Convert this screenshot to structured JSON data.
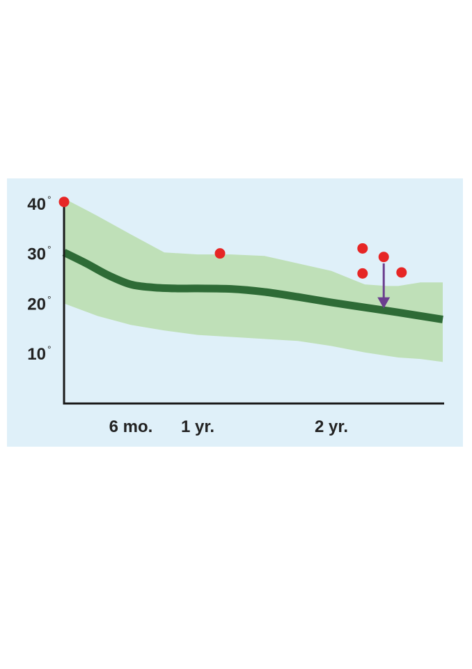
{
  "chart_data": {
    "type": "line",
    "title": "",
    "xlabel": "",
    "ylabel": "",
    "ylim": [
      0,
      45
    ],
    "xlim": [
      0,
      34
    ],
    "x_ticks": [
      {
        "value": 6,
        "label": "6 mo."
      },
      {
        "value": 12,
        "label": "1 yr."
      },
      {
        "value": 24,
        "label": "2 yr."
      }
    ],
    "y_ticks": [
      {
        "value": 10,
        "label": "10",
        "unit": "°"
      },
      {
        "value": 20,
        "label": "20",
        "unit": "°"
      },
      {
        "value": 30,
        "label": "30",
        "unit": "°"
      },
      {
        "value": 40,
        "label": "40",
        "unit": "°"
      }
    ],
    "series": [
      {
        "role": "mean",
        "points": [
          [
            0,
            30.2
          ],
          [
            2,
            28.0
          ],
          [
            4,
            25.6
          ],
          [
            6,
            23.8
          ],
          [
            8,
            23.2
          ],
          [
            10,
            23.0
          ],
          [
            12,
            23.0
          ],
          [
            15,
            22.9
          ],
          [
            18,
            22.3
          ],
          [
            21,
            21.3
          ],
          [
            24,
            20.2
          ],
          [
            27,
            19.2
          ],
          [
            30,
            18.2
          ],
          [
            34,
            16.8
          ]
        ]
      }
    ],
    "band": {
      "role": "range",
      "upper": [
        [
          0,
          41.0
        ],
        [
          3,
          37.5
        ],
        [
          6,
          33.8
        ],
        [
          9,
          30.2
        ],
        [
          12,
          29.8
        ],
        [
          15,
          29.8
        ],
        [
          18,
          29.5
        ],
        [
          21,
          28.0
        ],
        [
          24,
          26.5
        ],
        [
          27,
          23.8
        ],
        [
          29,
          23.5
        ],
        [
          30,
          23.5
        ],
        [
          32,
          24.2
        ],
        [
          34,
          24.2
        ]
      ],
      "lower": [
        [
          0,
          20.0
        ],
        [
          3,
          17.5
        ],
        [
          6,
          15.7
        ],
        [
          9,
          14.6
        ],
        [
          12,
          13.7
        ],
        [
          15,
          13.3
        ],
        [
          18,
          12.9
        ],
        [
          21,
          12.5
        ],
        [
          24,
          11.5
        ],
        [
          27,
          10.2
        ],
        [
          30,
          9.2
        ],
        [
          32,
          8.9
        ],
        [
          34,
          8.3
        ]
      ]
    },
    "points": [
      {
        "x": 0,
        "y": 40.3
      },
      {
        "x": 14,
        "y": 30.0
      },
      {
        "x": 26.8,
        "y": 31.0
      },
      {
        "x": 28.7,
        "y": 29.3
      },
      {
        "x": 26.8,
        "y": 26.0
      },
      {
        "x": 30.3,
        "y": 26.2
      }
    ],
    "annotation_arrow": {
      "x": 28.7,
      "from_y": 28.0,
      "to_y": 19.0
    },
    "grid": false,
    "legend": "none",
    "colors": {
      "background": "#dff0f9",
      "band": "#bfe0b8",
      "mean_line": "#2e6b36",
      "points": "#e62625",
      "arrow": "#6b3e8f",
      "axis": "#1a1a1a"
    }
  }
}
